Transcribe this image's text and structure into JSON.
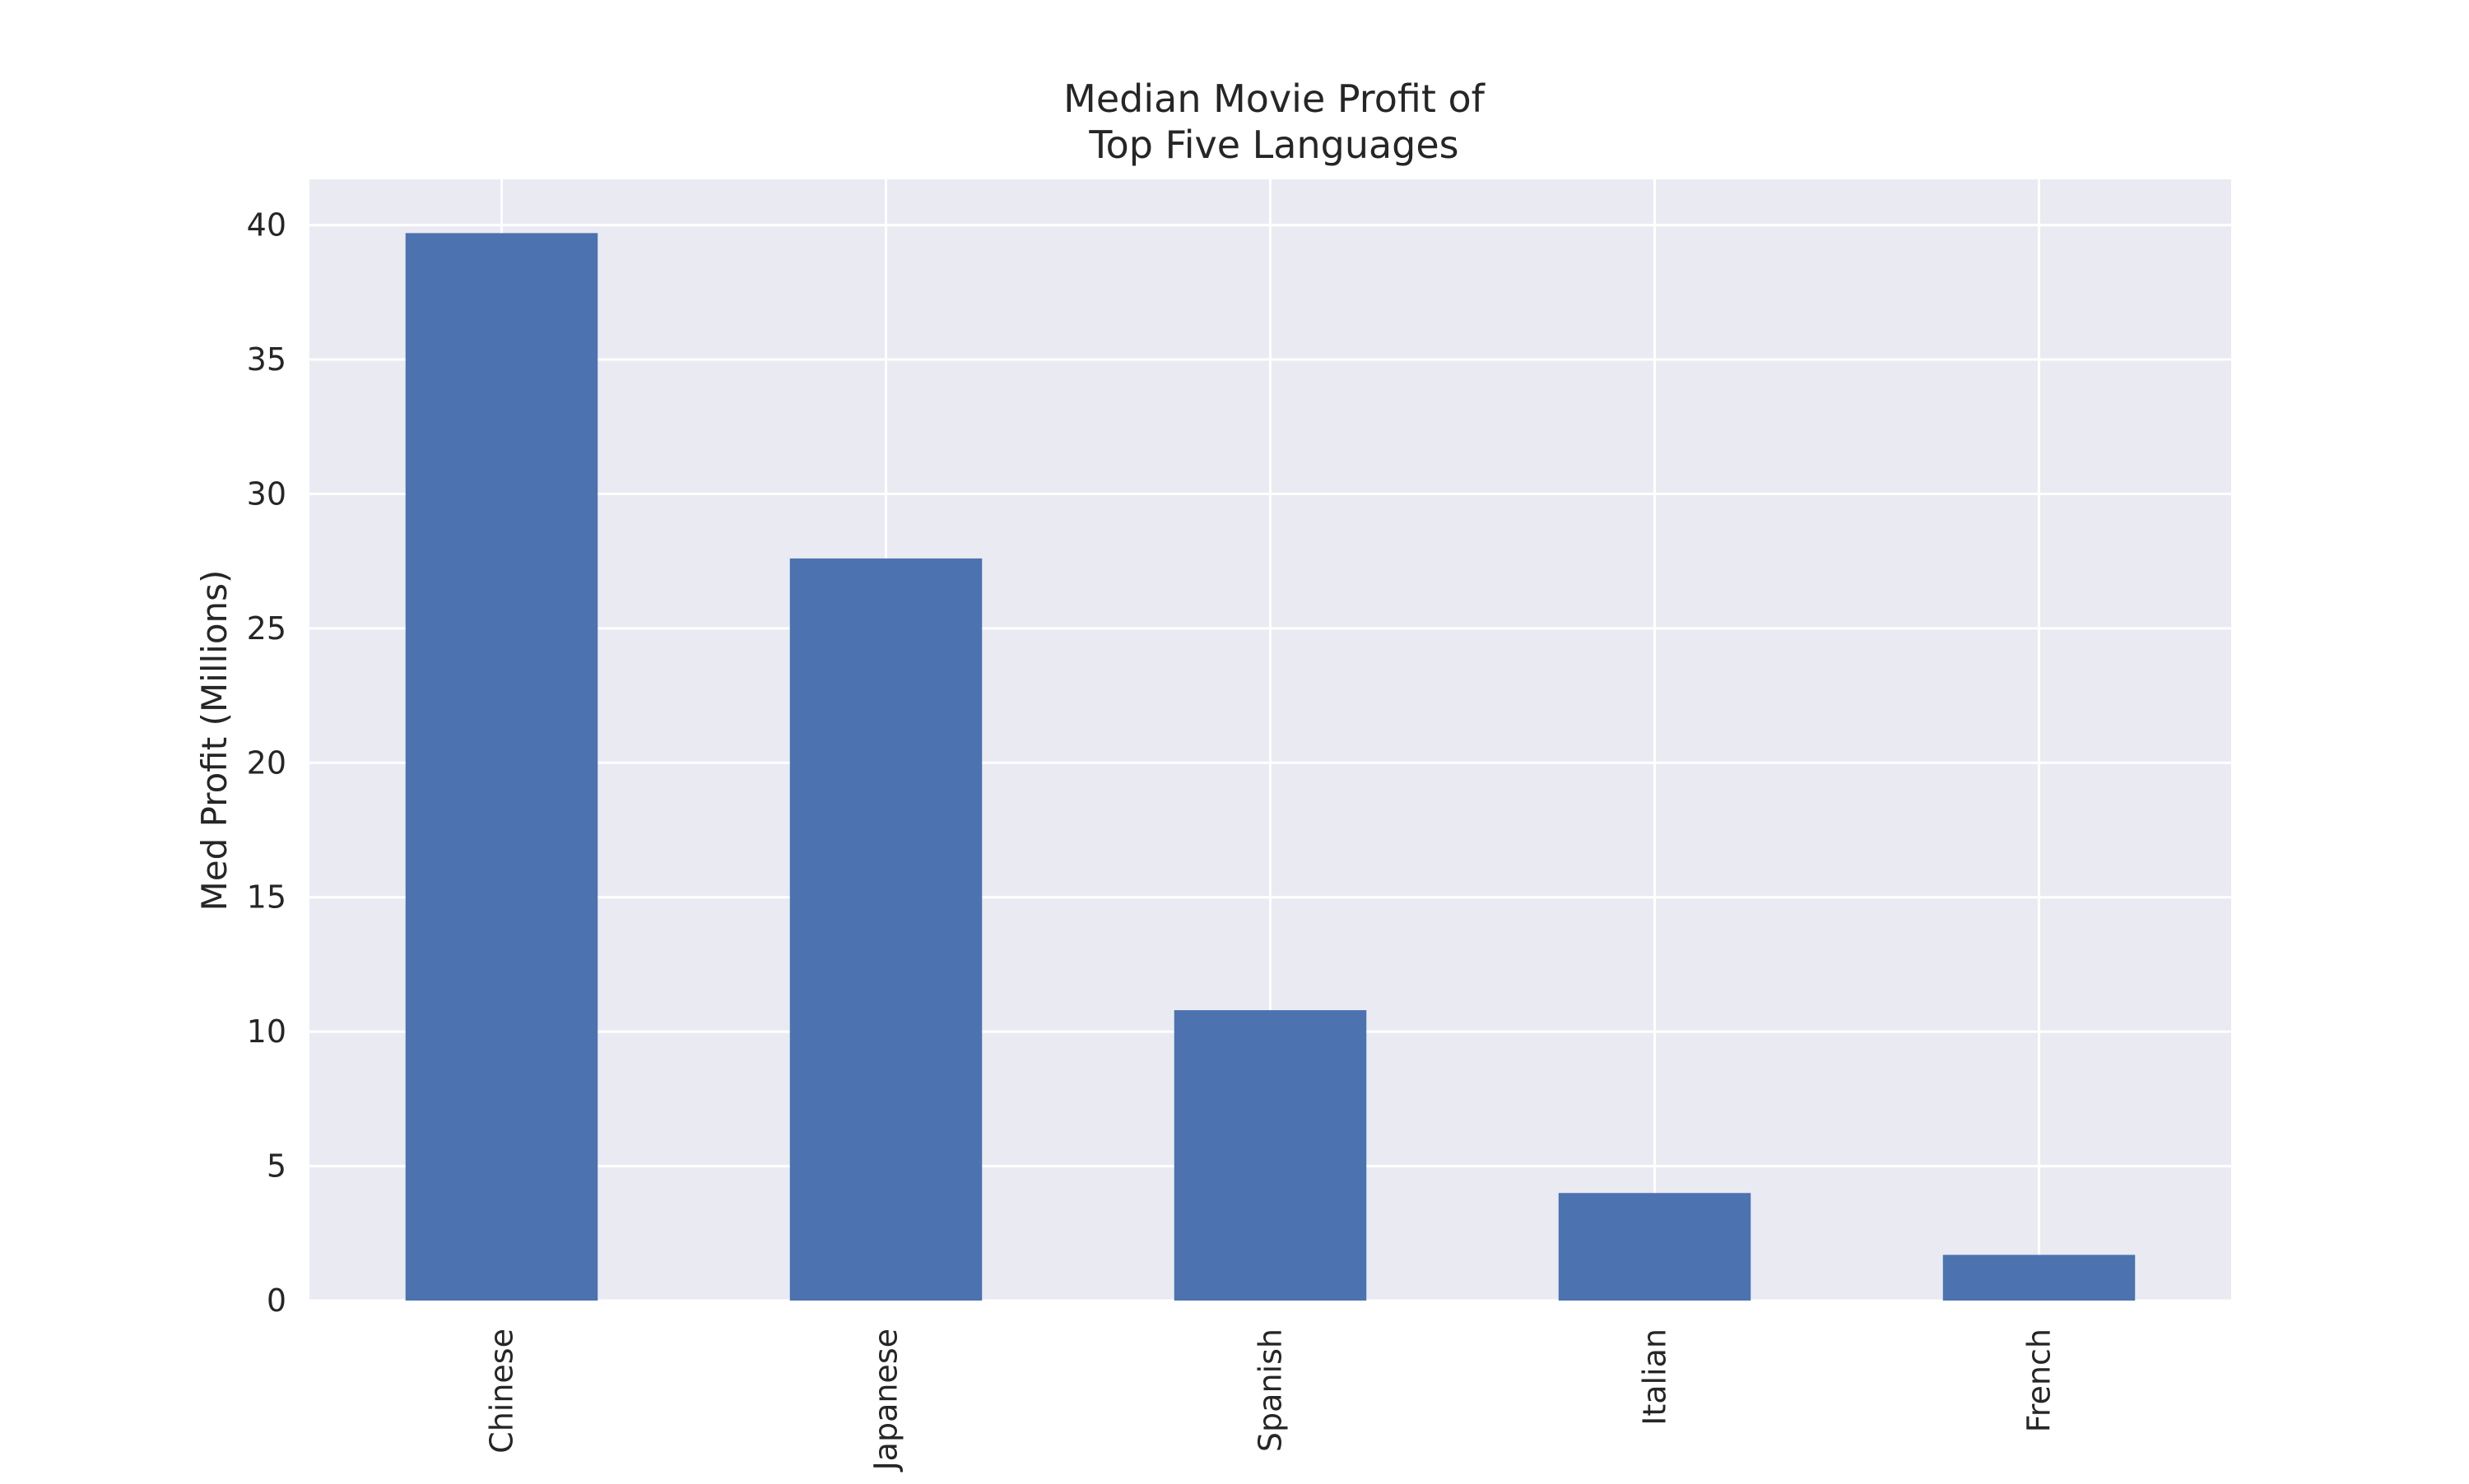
{
  "chart_data": {
    "type": "bar",
    "title_lines": [
      "Median Movie Profit of",
      "Top Five Languages"
    ],
    "xlabel": "",
    "ylabel": "Med Profit (Millions)",
    "categories": [
      "Chinese",
      "Japanese",
      "Spanish",
      "Italian",
      "French"
    ],
    "values": [
      39.7,
      27.6,
      10.8,
      4.0,
      1.7
    ],
    "ylim": [
      0,
      41.7
    ],
    "yticks": [
      0,
      5,
      10,
      15,
      20,
      25,
      30,
      35,
      40
    ],
    "grid": true,
    "legend": "none",
    "colors": {
      "bar": "#4c72b0",
      "plot_background": "#eaeaf2",
      "grid": "#ffffff",
      "text": "#262626"
    }
  }
}
